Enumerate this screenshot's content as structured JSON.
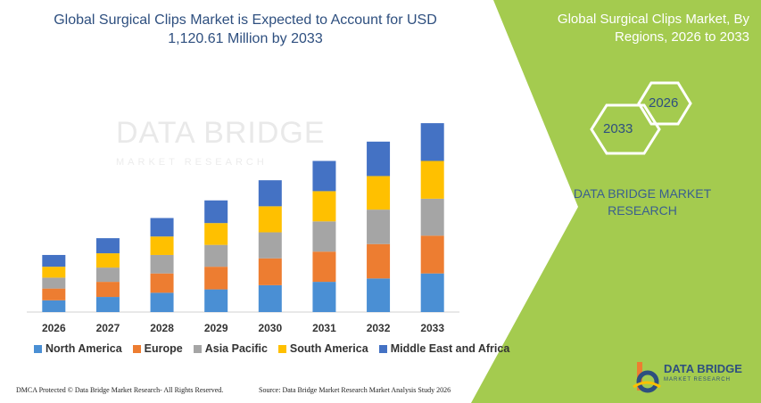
{
  "chart_data": {
    "type": "bar",
    "stacked": true,
    "title": "Global Surgical Clips Market is Expected to Account for USD 1,120.61 Million by 2033",
    "categories": [
      "2026",
      "2027",
      "2028",
      "2029",
      "2030",
      "2031",
      "2032",
      "2033"
    ],
    "series": [
      {
        "name": "North America",
        "color": "#4a8fd4",
        "values": [
          14,
          18,
          23,
          27,
          32,
          36,
          40,
          46
        ]
      },
      {
        "name": "Europe",
        "color": "#ed7d31",
        "values": [
          14,
          18,
          23,
          27,
          32,
          36,
          41,
          45
        ]
      },
      {
        "name": "Asia Pacific",
        "color": "#a5a5a5",
        "values": [
          13,
          17,
          22,
          26,
          31,
          36,
          41,
          44
        ]
      },
      {
        "name": "South America",
        "color": "#ffc000",
        "values": [
          13,
          17,
          22,
          26,
          31,
          36,
          40,
          45
        ]
      },
      {
        "name": "Middle East and Africa",
        "color": "#4472c4",
        "values": [
          14,
          18,
          22,
          27,
          31,
          36,
          41,
          45
        ]
      }
    ],
    "ylim": [
      0,
      240
    ],
    "legend_position": "bottom"
  },
  "right_panel": {
    "title": "Global Surgical Clips Market, By Regions, 2026 to 2033",
    "hex_2026": "2026",
    "hex_2033": "2033",
    "brand": "DATA BRIDGE MARKET RESEARCH"
  },
  "watermark": {
    "line1": "DATA BRIDGE",
    "line2": "MARKET RESEARCH"
  },
  "footer": {
    "left": "DMCA Protected © Data Bridge Market Research- All Rights Reserved.",
    "right": "Source: Data Bridge Market Research Market Analysis Study 2026"
  },
  "logo": {
    "name": "DATA BRIDGE",
    "sub": "MARKET RESEARCH"
  },
  "colors": {
    "green": "#a4cb4f",
    "title": "#2e4f7f"
  }
}
